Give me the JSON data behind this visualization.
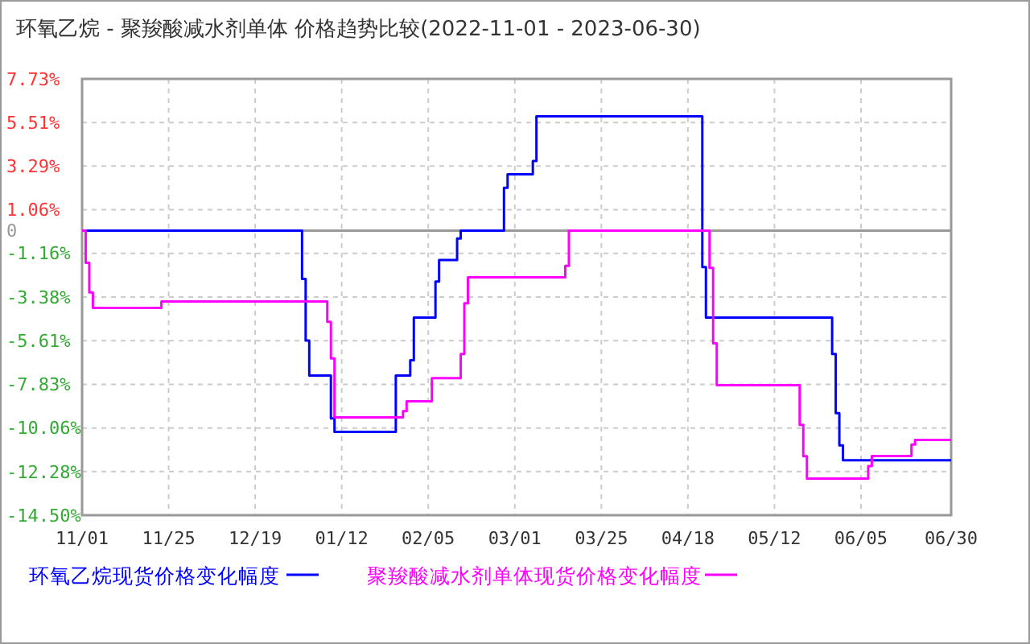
{
  "chart_data": {
    "type": "step",
    "title": "环氧乙烷 - 聚羧酸减水剂单体 价格趋势比较(2022-11-01 - 2023-06-30)",
    "xlim": [
      "2022-11-01",
      "2023-06-30"
    ],
    "xticks": [
      {
        "value": "2022-11-01",
        "label": "11/01"
      },
      {
        "value": "2022-11-25",
        "label": "11/25"
      },
      {
        "value": "2022-12-19",
        "label": "12/19"
      },
      {
        "value": "2023-01-12",
        "label": "01/12"
      },
      {
        "value": "2023-02-05",
        "label": "02/05"
      },
      {
        "value": "2023-03-01",
        "label": "03/01"
      },
      {
        "value": "2023-03-25",
        "label": "03/25"
      },
      {
        "value": "2023-04-18",
        "label": "04/18"
      },
      {
        "value": "2023-05-12",
        "label": "05/12"
      },
      {
        "value": "2023-06-05",
        "label": "06/05"
      },
      {
        "value": "2023-06-30",
        "label": "06/30"
      }
    ],
    "ylim": [
      -14.5,
      7.73
    ],
    "yticks": [
      {
        "value": 7.73,
        "label": "7.73%"
      },
      {
        "value": 5.51,
        "label": "5.51%"
      },
      {
        "value": 3.29,
        "label": "3.29%"
      },
      {
        "value": 1.06,
        "label": "1.06%"
      },
      0,
      {
        "value": -1.16,
        "label": "-1.16%"
      },
      {
        "value": -3.38,
        "label": "-3.38%"
      },
      {
        "value": -5.61,
        "label": "-5.61%"
      },
      {
        "value": -7.83,
        "label": "-7.83%"
      },
      {
        "value": -10.06,
        "label": "-10.06%"
      },
      {
        "value": -12.28,
        "label": "-12.28%"
      },
      {
        "value": -14.5,
        "label": "-14.50%"
      }
    ],
    "grid": true,
    "legend": "bottom",
    "line_style": "solid",
    "marker": "none",
    "ref_lines": [
      {
        "axis": "y",
        "value": 0,
        "color": "#999999"
      }
    ],
    "series": [
      {
        "name": "环氧乙烷现货价格变化幅度",
        "color": "#0000ff",
        "x": [
          "2022-11-01",
          "2023-01-01",
          "2023-01-02",
          "2023-01-03",
          "2023-01-09",
          "2023-01-10",
          "2023-01-27",
          "2023-01-31",
          "2023-02-01",
          "2023-02-07",
          "2023-02-08",
          "2023-02-13",
          "2023-02-14",
          "2023-02-26",
          "2023-02-27",
          "2023-03-06",
          "2023-03-07",
          "2023-04-22",
          "2023-04-23",
          "2023-05-28",
          "2023-05-29",
          "2023-05-30",
          "2023-05-31",
          "2023-06-30"
        ],
        "values": [
          0,
          -2.46,
          -5.6,
          -7.38,
          -9.57,
          -10.26,
          -7.38,
          -6.6,
          -4.43,
          -2.6,
          -1.5,
          -0.4,
          0,
          2.18,
          2.87,
          3.55,
          5.82,
          -1.86,
          -4.43,
          -6.29,
          -9.3,
          -10.94,
          -11.7,
          -11.7
        ]
      },
      {
        "name": "聚羧酸减水剂单体现货价格变化幅度",
        "color": "#ff00ff",
        "x": [
          "2022-11-01",
          "2022-11-02",
          "2022-11-03",
          "2022-11-04",
          "2022-11-23",
          "2023-01-08",
          "2023-01-09",
          "2023-01-10",
          "2023-01-29",
          "2023-01-30",
          "2023-02-06",
          "2023-02-14",
          "2023-02-15",
          "2023-02-16",
          "2023-03-15",
          "2023-03-16",
          "2023-04-24",
          "2023-04-25",
          "2023-04-26",
          "2023-05-19",
          "2023-05-20",
          "2023-05-21",
          "2023-06-07",
          "2023-06-08",
          "2023-06-19",
          "2023-06-20",
          "2023-06-30"
        ],
        "values": [
          0,
          -1.64,
          -3.15,
          -3.94,
          -3.61,
          -4.65,
          -6.51,
          -9.52,
          -9.2,
          -8.7,
          -7.52,
          -6.29,
          -3.7,
          -2.38,
          -1.8,
          0,
          -1.9,
          -5.74,
          -7.88,
          -9.9,
          -11.5,
          -12.63,
          -12.0,
          -11.49,
          -10.9,
          -10.67,
          -10.67
        ]
      }
    ]
  }
}
